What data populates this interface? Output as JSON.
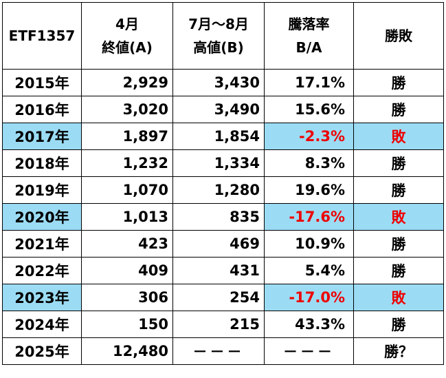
{
  "colors": {
    "highlight": "#9bdcf4",
    "negative": "#ee0000",
    "border": "#000000"
  },
  "header": {
    "col0": "ETF1357",
    "col1_line1": "4月",
    "col1_line2": "終値(A)",
    "col2_line1": "7月～8月",
    "col2_line2": "高値(B)",
    "col3_line1": "騰落率",
    "col3_line2": "B/A",
    "col4": "勝敗"
  },
  "rows": [
    {
      "year": "2015年",
      "close": "2,929",
      "high": "3,430",
      "rate": "17.1%",
      "result": "勝",
      "loss": false
    },
    {
      "year": "2016年",
      "close": "3,020",
      "high": "3,490",
      "rate": "15.6%",
      "result": "勝",
      "loss": false
    },
    {
      "year": "2017年",
      "close": "1,897",
      "high": "1,854",
      "rate": "-2.3%",
      "result": "敗",
      "loss": true
    },
    {
      "year": "2018年",
      "close": "1,232",
      "high": "1,334",
      "rate": "8.3%",
      "result": "勝",
      "loss": false
    },
    {
      "year": "2019年",
      "close": "1,070",
      "high": "1,280",
      "rate": "19.6%",
      "result": "勝",
      "loss": false
    },
    {
      "year": "2020年",
      "close": "1,013",
      "high": "835",
      "rate": "-17.6%",
      "result": "敗",
      "loss": true
    },
    {
      "year": "2021年",
      "close": "423",
      "high": "469",
      "rate": "10.9%",
      "result": "勝",
      "loss": false
    },
    {
      "year": "2022年",
      "close": "409",
      "high": "431",
      "rate": "5.4%",
      "result": "勝",
      "loss": false
    },
    {
      "year": "2023年",
      "close": "306",
      "high": "254",
      "rate": "-17.0%",
      "result": "敗",
      "loss": true
    },
    {
      "year": "2024年",
      "close": "150",
      "high": "215",
      "rate": "43.3%",
      "result": "勝",
      "loss": false
    },
    {
      "year": "2025年",
      "close": "12,480",
      "high": "－－－",
      "rate": "－－－",
      "result": "勝？",
      "loss": false
    }
  ]
}
